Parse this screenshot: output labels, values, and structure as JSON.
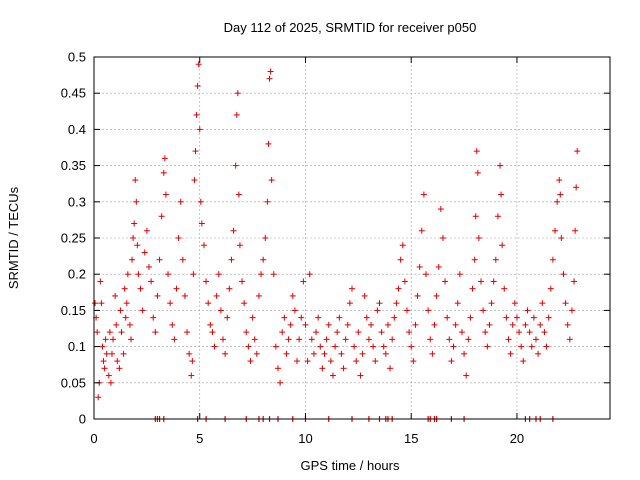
{
  "chart_data": {
    "type": "scatter",
    "title": "Day 112 of 2025, SRMTID for receiver p050",
    "xlabel": "GPS time / hours",
    "ylabel": "SRMTID / TECUs",
    "xlim": [
      0,
      24.4
    ],
    "ylim": [
      0,
      0.5
    ],
    "x_ticks": [
      0,
      5,
      10,
      15,
      20
    ],
    "y_ticks": [
      0,
      0.05,
      0.1,
      0.15,
      0.2,
      0.25,
      0.3,
      0.35,
      0.4,
      0.45,
      0.5
    ],
    "x_tick_labels": [
      "0",
      "5",
      "10",
      "15",
      "20"
    ],
    "y_tick_labels": [
      "0",
      "0.05",
      "0.1",
      "0.15",
      "0.2",
      "0.25",
      "0.3",
      "0.35",
      "0.4",
      "0.45",
      "0.5"
    ],
    "grid": true,
    "marker": "+",
    "color": "#e00000",
    "series": [
      {
        "name": "SRMTID",
        "points": [
          [
            0.05,
            0.16
          ],
          [
            0.1,
            0.14
          ],
          [
            0.15,
            0.12
          ],
          [
            0.2,
            0.03
          ],
          [
            0.25,
            0.05
          ],
          [
            0.3,
            0.19
          ],
          [
            0.35,
            0.16
          ],
          [
            0.4,
            0.1
          ],
          [
            0.45,
            0.08
          ],
          [
            0.5,
            0.07
          ],
          [
            0.55,
            0.11
          ],
          [
            0.6,
            0.09
          ],
          [
            0.7,
            0.06
          ],
          [
            0.75,
            0.12
          ],
          [
            0.8,
            0.05
          ],
          [
            0.85,
            0.09
          ],
          [
            0.9,
            0.11
          ],
          [
            1.0,
            0.17
          ],
          [
            1.05,
            0.13
          ],
          [
            1.1,
            0.08
          ],
          [
            1.2,
            0.07
          ],
          [
            1.25,
            0.15
          ],
          [
            1.3,
            0.12
          ],
          [
            1.4,
            0.09
          ],
          [
            1.45,
            0.18
          ],
          [
            1.5,
            0.14
          ],
          [
            1.55,
            0.16
          ],
          [
            1.6,
            0.2
          ],
          [
            1.7,
            0.13
          ],
          [
            1.75,
            0.11
          ],
          [
            1.8,
            0.22
          ],
          [
            1.85,
            0.25
          ],
          [
            1.9,
            0.27
          ],
          [
            1.95,
            0.33
          ],
          [
            2.0,
            0.3
          ],
          [
            2.05,
            0.24
          ],
          [
            2.1,
            0.2
          ],
          [
            2.2,
            0.18
          ],
          [
            2.3,
            0.15
          ],
          [
            2.4,
            0.23
          ],
          [
            2.5,
            0.26
          ],
          [
            2.6,
            0.21
          ],
          [
            2.7,
            0.19
          ],
          [
            2.8,
            0.14
          ],
          [
            2.9,
            0.12
          ],
          [
            3.0,
            0.17
          ],
          [
            3.1,
            0.22
          ],
          [
            3.2,
            0.28
          ],
          [
            3.3,
            0.34
          ],
          [
            3.35,
            0.36
          ],
          [
            3.4,
            0.31
          ],
          [
            3.5,
            0.2
          ],
          [
            3.6,
            0.16
          ],
          [
            3.7,
            0.13
          ],
          [
            3.8,
            0.11
          ],
          [
            3.9,
            0.18
          ],
          [
            4.0,
            0.25
          ],
          [
            4.1,
            0.3
          ],
          [
            4.2,
            0.22
          ],
          [
            4.3,
            0.17
          ],
          [
            4.4,
            0.12
          ],
          [
            4.5,
            0.09
          ],
          [
            4.6,
            0.06
          ],
          [
            4.65,
            0.08
          ],
          [
            4.7,
            0.2
          ],
          [
            4.75,
            0.33
          ],
          [
            4.8,
            0.37
          ],
          [
            4.85,
            0.42
          ],
          [
            4.9,
            0.46
          ],
          [
            4.95,
            0.49
          ],
          [
            5.0,
            0.4
          ],
          [
            5.05,
            0.3
          ],
          [
            5.1,
            0.27
          ],
          [
            5.2,
            0.24
          ],
          [
            5.3,
            0.19
          ],
          [
            5.4,
            0.16
          ],
          [
            5.5,
            0.13
          ],
          [
            5.6,
            0.12
          ],
          [
            5.7,
            0.1
          ],
          [
            5.8,
            0.17
          ],
          [
            5.9,
            0.2
          ],
          [
            6.0,
            0.15
          ],
          [
            6.1,
            0.11
          ],
          [
            6.2,
            0.09
          ],
          [
            6.3,
            0.14
          ],
          [
            6.4,
            0.18
          ],
          [
            6.5,
            0.22
          ],
          [
            6.6,
            0.26
          ],
          [
            6.7,
            0.35
          ],
          [
            6.75,
            0.42
          ],
          [
            6.8,
            0.45
          ],
          [
            6.85,
            0.31
          ],
          [
            6.9,
            0.24
          ],
          [
            7.0,
            0.19
          ],
          [
            7.1,
            0.16
          ],
          [
            7.2,
            0.12
          ],
          [
            7.3,
            0.1
          ],
          [
            7.4,
            0.08
          ],
          [
            7.5,
            0.14
          ],
          [
            7.6,
            0.11
          ],
          [
            7.7,
            0.09
          ],
          [
            7.8,
            0.17
          ],
          [
            7.9,
            0.2
          ],
          [
            8.0,
            0.22
          ],
          [
            8.1,
            0.25
          ],
          [
            8.2,
            0.3
          ],
          [
            8.25,
            0.38
          ],
          [
            8.3,
            0.47
          ],
          [
            8.35,
            0.48
          ],
          [
            8.4,
            0.33
          ],
          [
            8.5,
            0.2
          ],
          [
            8.6,
            0.1
          ],
          [
            8.7,
            0.07
          ],
          [
            8.8,
            0.05
          ],
          [
            8.9,
            0.12
          ],
          [
            9.0,
            0.14
          ],
          [
            9.1,
            0.09
          ],
          [
            9.2,
            0.11
          ],
          [
            9.3,
            0.13
          ],
          [
            9.4,
            0.17
          ],
          [
            9.5,
            0.15
          ],
          [
            9.6,
            0.08
          ],
          [
            9.7,
            0.11
          ],
          [
            9.8,
            0.14
          ],
          [
            9.9,
            0.19
          ],
          [
            10.0,
            0.13
          ],
          [
            10.1,
            0.08
          ],
          [
            10.2,
            0.2
          ],
          [
            10.3,
            0.11
          ],
          [
            10.4,
            0.09
          ],
          [
            10.5,
            0.12
          ],
          [
            10.6,
            0.14
          ],
          [
            10.7,
            0.1
          ],
          [
            10.8,
            0.07
          ],
          [
            10.9,
            0.09
          ],
          [
            11.0,
            0.11
          ],
          [
            11.1,
            0.13
          ],
          [
            11.2,
            0.08
          ],
          [
            11.3,
            0.06
          ],
          [
            11.4,
            0.1
          ],
          [
            11.5,
            0.12
          ],
          [
            11.6,
            0.14
          ],
          [
            11.7,
            0.09
          ],
          [
            11.8,
            0.07
          ],
          [
            11.9,
            0.11
          ],
          [
            12.0,
            0.13
          ],
          [
            12.1,
            0.16
          ],
          [
            12.2,
            0.18
          ],
          [
            12.3,
            0.1
          ],
          [
            12.4,
            0.08
          ],
          [
            12.5,
            0.12
          ],
          [
            12.6,
            0.06
          ],
          [
            12.7,
            0.09
          ],
          [
            12.8,
            0.17
          ],
          [
            12.9,
            0.14
          ],
          [
            13.0,
            0.11
          ],
          [
            13.1,
            0.13
          ],
          [
            13.2,
            0.1
          ],
          [
            13.3,
            0.08
          ],
          [
            13.4,
            0.15
          ],
          [
            13.5,
            0.16
          ],
          [
            13.6,
            0.12
          ],
          [
            13.7,
            0.1
          ],
          [
            13.8,
            0.09
          ],
          [
            13.9,
            0.13
          ],
          [
            14.0,
            0.07
          ],
          [
            14.1,
            0.11
          ],
          [
            14.2,
            0.14
          ],
          [
            14.3,
            0.16
          ],
          [
            14.4,
            0.18
          ],
          [
            14.5,
            0.22
          ],
          [
            14.6,
            0.24
          ],
          [
            14.7,
            0.19
          ],
          [
            14.8,
            0.15
          ],
          [
            14.9,
            0.12
          ],
          [
            15.0,
            0.1
          ],
          [
            15.1,
            0.08
          ],
          [
            15.2,
            0.13
          ],
          [
            15.3,
            0.17
          ],
          [
            15.4,
            0.21
          ],
          [
            15.5,
            0.26
          ],
          [
            15.6,
            0.31
          ],
          [
            15.7,
            0.2
          ],
          [
            15.8,
            0.15
          ],
          [
            15.9,
            0.11
          ],
          [
            16.0,
            0.09
          ],
          [
            16.1,
            0.13
          ],
          [
            16.2,
            0.17
          ],
          [
            16.3,
            0.21
          ],
          [
            16.4,
            0.29
          ],
          [
            16.5,
            0.25
          ],
          [
            16.6,
            0.19
          ],
          [
            16.7,
            0.14
          ],
          [
            16.8,
            0.11
          ],
          [
            16.9,
            0.08
          ],
          [
            17.0,
            0.1
          ],
          [
            17.1,
            0.13
          ],
          [
            17.2,
            0.16
          ],
          [
            17.3,
            0.2
          ],
          [
            17.4,
            0.12
          ],
          [
            17.5,
            0.09
          ],
          [
            17.6,
            0.06
          ],
          [
            17.7,
            0.11
          ],
          [
            17.8,
            0.14
          ],
          [
            17.9,
            0.18
          ],
          [
            18.0,
            0.22
          ],
          [
            18.05,
            0.28
          ],
          [
            18.1,
            0.37
          ],
          [
            18.15,
            0.34
          ],
          [
            18.2,
            0.25
          ],
          [
            18.3,
            0.19
          ],
          [
            18.4,
            0.15
          ],
          [
            18.5,
            0.12
          ],
          [
            18.6,
            0.1
          ],
          [
            18.7,
            0.13
          ],
          [
            18.8,
            0.16
          ],
          [
            18.9,
            0.19
          ],
          [
            19.0,
            0.22
          ],
          [
            19.1,
            0.28
          ],
          [
            19.2,
            0.35
          ],
          [
            19.25,
            0.31
          ],
          [
            19.3,
            0.24
          ],
          [
            19.4,
            0.18
          ],
          [
            19.5,
            0.14
          ],
          [
            19.6,
            0.11
          ],
          [
            19.7,
            0.09
          ],
          [
            19.8,
            0.13
          ],
          [
            19.9,
            0.16
          ],
          [
            20.0,
            0.14
          ],
          [
            20.1,
            0.12
          ],
          [
            20.2,
            0.1
          ],
          [
            20.3,
            0.08
          ],
          [
            20.4,
            0.13
          ],
          [
            20.5,
            0.15
          ],
          [
            20.6,
            0.12
          ],
          [
            20.7,
            0.1
          ],
          [
            20.8,
            0.14
          ],
          [
            20.9,
            0.11
          ],
          [
            21.0,
            0.09
          ],
          [
            21.1,
            0.13
          ],
          [
            21.2,
            0.16
          ],
          [
            21.3,
            0.12
          ],
          [
            21.4,
            0.1
          ],
          [
            21.5,
            0.14
          ],
          [
            21.6,
            0.18
          ],
          [
            21.7,
            0.22
          ],
          [
            21.8,
            0.26
          ],
          [
            21.9,
            0.3
          ],
          [
            22.0,
            0.33
          ],
          [
            22.05,
            0.31
          ],
          [
            22.1,
            0.25
          ],
          [
            22.2,
            0.2
          ],
          [
            22.3,
            0.16
          ],
          [
            22.4,
            0.13
          ],
          [
            22.5,
            0.11
          ],
          [
            22.6,
            0.15
          ],
          [
            22.7,
            0.19
          ],
          [
            22.75,
            0.26
          ],
          [
            22.8,
            0.32
          ],
          [
            22.85,
            0.37
          ]
        ]
      }
    ],
    "baseline_markers_x": [
      2.9,
      3.0,
      3.1,
      3.3,
      4.9,
      5.3,
      6.2,
      7.2,
      7.8,
      8.0,
      8.3,
      8.7,
      9.4,
      10.0,
      11.1,
      12.2,
      13.0,
      13.5,
      13.8,
      13.9,
      14.1,
      15.8,
      15.9,
      16.1,
      16.2,
      16.9,
      17.5,
      20.4,
      20.6,
      20.9,
      21.1,
      21.7
    ]
  }
}
